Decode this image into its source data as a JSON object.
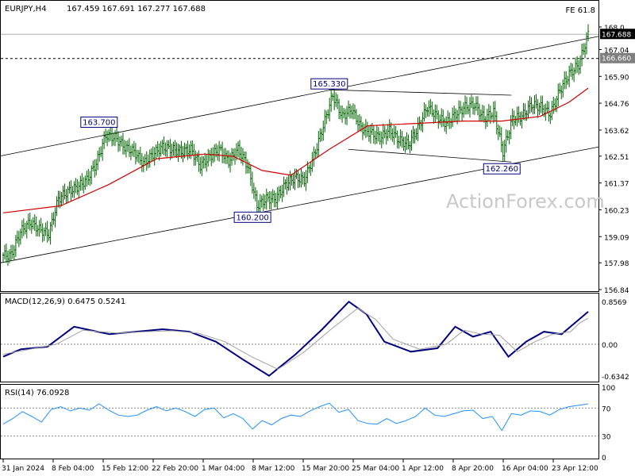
{
  "header": {
    "symbol": "EURJPY,H4",
    "ohlc": "167.459 167.691 167.277 167.688",
    "fe_label": "FE 61.8"
  },
  "watermark": "ActionForex.com",
  "colors": {
    "candles": "#006400",
    "ma": "#d00000",
    "macd": "#000080",
    "signal": "#a0a0a0",
    "channel": "#000000",
    "rsi": "#1e90ff"
  },
  "chart_data": [
    {
      "type": "candlestick",
      "name": "price",
      "y_ticks": [
        168.0,
        167.04,
        165.9,
        164.76,
        163.62,
        162.51,
        161.37,
        160.23,
        159.09,
        157.98,
        156.84
      ],
      "y_tick_labels": [
        "168.0",
        "167.04",
        "165.90",
        "164.76",
        "163.62",
        "162.51",
        "161.37",
        "160.23",
        "159.09",
        "157.98",
        "156.84"
      ],
      "ylim": [
        156.84,
        168.0
      ],
      "current_price": 167.688,
      "current_price_label": "167.688",
      "level_line": 166.66,
      "level_label": "166.660",
      "annotations": [
        {
          "label": "163.700",
          "date": "14 Feb",
          "value": 163.7
        },
        {
          "label": "165.330",
          "date": "19 Mar",
          "value": 165.33
        },
        {
          "label": "160.200",
          "date": "7 Mar",
          "value": 160.2
        },
        {
          "label": "162.260",
          "date": "12 Apr",
          "value": 162.26
        }
      ],
      "close_path": [
        [
          "31 Jan",
          158.3
        ],
        [
          "1 Feb",
          159.3
        ],
        [
          "2 Feb",
          159.7
        ],
        [
          "5 Feb",
          159.4
        ],
        [
          "6 Feb",
          159.2
        ],
        [
          "7 Feb",
          160.7
        ],
        [
          "8 Feb",
          161.0
        ],
        [
          "9 Feb",
          161.2
        ],
        [
          "12 Feb",
          161.5
        ],
        [
          "13 Feb",
          162.2
        ],
        [
          "14 Feb",
          163.4
        ],
        [
          "15 Feb",
          163.3
        ],
        [
          "16 Feb",
          162.9
        ],
        [
          "19 Feb",
          162.7
        ],
        [
          "20 Feb",
          162.2
        ],
        [
          "21 Feb",
          162.6
        ],
        [
          "22 Feb",
          162.9
        ],
        [
          "23 Feb",
          162.8
        ],
        [
          "26 Feb",
          162.7
        ],
        [
          "27 Feb",
          162.8
        ],
        [
          "28 Feb",
          162.1
        ],
        [
          "29 Feb",
          162.5
        ],
        [
          "1 Mar",
          162.8
        ],
        [
          "4 Mar",
          162.3
        ],
        [
          "5 Mar",
          162.8
        ],
        [
          "6 Mar",
          162.1
        ],
        [
          "7 Mar",
          160.4
        ],
        [
          "8 Mar",
          160.7
        ],
        [
          "11 Mar",
          160.7
        ],
        [
          "12 Mar",
          161.3
        ],
        [
          "13 Mar",
          161.6
        ],
        [
          "14 Mar",
          161.5
        ],
        [
          "15 Mar",
          162.5
        ],
        [
          "18 Mar",
          163.8
        ],
        [
          "19 Mar",
          165.1
        ],
        [
          "20 Mar",
          164.2
        ],
        [
          "21 Mar",
          164.5
        ],
        [
          "22 Mar",
          163.7
        ],
        [
          "25 Mar",
          163.5
        ],
        [
          "26 Mar",
          163.3
        ],
        [
          "27 Mar",
          163.6
        ],
        [
          "28 Mar",
          163.2
        ],
        [
          "29 Mar",
          163.0
        ],
        [
          "1 Apr",
          163.7
        ],
        [
          "2 Apr",
          164.6
        ],
        [
          "3 Apr",
          164.2
        ],
        [
          "4 Apr",
          163.9
        ],
        [
          "5 Apr",
          164.3
        ],
        [
          "8 Apr",
          164.6
        ],
        [
          "9 Apr",
          164.7
        ],
        [
          "10 Apr",
          164.1
        ],
        [
          "11 Apr",
          164.4
        ],
        [
          "12 Apr",
          162.7
        ],
        [
          "15 Apr",
          164.1
        ],
        [
          "16 Apr",
          164.2
        ],
        [
          "17 Apr",
          164.7
        ],
        [
          "18 Apr",
          164.6
        ],
        [
          "19 Apr",
          164.3
        ],
        [
          "22 Apr",
          165.3
        ],
        [
          "23 Apr",
          166.0
        ],
        [
          "24 Apr",
          166.4
        ],
        [
          "25 Apr",
          167.688
        ]
      ],
      "ma_path": [
        [
          "31 Jan",
          160.1
        ],
        [
          "8 Feb",
          160.4
        ],
        [
          "15 Feb",
          161.3
        ],
        [
          "22 Feb",
          162.4
        ],
        [
          "29 Feb",
          162.6
        ],
        [
          "5 Mar",
          162.5
        ],
        [
          "8 Mar",
          161.9
        ],
        [
          "13 Mar",
          161.7
        ],
        [
          "19 Mar",
          162.8
        ],
        [
          "25 Mar",
          163.8
        ],
        [
          "1 Apr",
          163.9
        ],
        [
          "8 Apr",
          164.0
        ],
        [
          "12 Apr",
          164.0
        ],
        [
          "18 Apr",
          164.2
        ],
        [
          "23 Apr",
          164.8
        ],
        [
          "25 Apr",
          165.4
        ]
      ],
      "channel_lines": [
        {
          "from": [
            "31 Jan",
            162.52
          ],
          "to": [
            "25 Apr",
            167.6
          ]
        },
        {
          "from": [
            "31 Jan",
            157.98
          ],
          "to": [
            "25 Apr",
            162.9
          ]
        }
      ],
      "triangle_lines": [
        {
          "from": [
            "19 Mar",
            165.33
          ],
          "to": [
            "15 Apr",
            165.1
          ]
        },
        {
          "from": [
            "21 Mar",
            162.8
          ],
          "to": [
            "15 Apr",
            162.26
          ]
        }
      ]
    },
    {
      "type": "line",
      "name": "macd_panel",
      "label": "MACD(12,26,9) 0.6475 0.5241",
      "y_ticks": [
        0.8569,
        0.0,
        -0.6342
      ],
      "y_tick_labels": [
        "0.8569",
        "0.00",
        "-0.6342"
      ],
      "ylim": [
        -0.7,
        0.95
      ],
      "series": [
        {
          "name": "MACD",
          "values": [
            [
              0,
              -0.25
            ],
            [
              2,
              -0.1
            ],
            [
              5,
              -0.05
            ],
            [
              8,
              0.35
            ],
            [
              12,
              0.2
            ],
            [
              15,
              0.25
            ],
            [
              18,
              0.3
            ],
            [
              21,
              0.25
            ],
            [
              24,
              0.05
            ],
            [
              27,
              -0.3
            ],
            [
              30,
              -0.63
            ],
            [
              33,
              -0.2
            ],
            [
              36,
              0.3
            ],
            [
              39,
              0.85
            ],
            [
              41,
              0.6
            ],
            [
              43,
              0.05
            ],
            [
              46,
              -0.15
            ],
            [
              49,
              -0.08
            ],
            [
              51,
              0.35
            ],
            [
              53,
              0.15
            ],
            [
              55,
              0.25
            ],
            [
              57,
              -0.25
            ],
            [
              59,
              0.05
            ],
            [
              61,
              0.25
            ],
            [
              63,
              0.2
            ],
            [
              65,
              0.5
            ],
            [
              66,
              0.65
            ]
          ]
        },
        {
          "name": "Signal",
          "values": [
            [
              0,
              -0.2
            ],
            [
              3,
              -0.1
            ],
            [
              6,
              0.0
            ],
            [
              9,
              0.28
            ],
            [
              13,
              0.22
            ],
            [
              16,
              0.25
            ],
            [
              19,
              0.27
            ],
            [
              22,
              0.22
            ],
            [
              25,
              0.05
            ],
            [
              28,
              -0.25
            ],
            [
              31,
              -0.5
            ],
            [
              34,
              -0.15
            ],
            [
              37,
              0.3
            ],
            [
              40,
              0.72
            ],
            [
              42,
              0.5
            ],
            [
              44,
              0.1
            ],
            [
              47,
              -0.1
            ],
            [
              50,
              0.0
            ],
            [
              52,
              0.28
            ],
            [
              54,
              0.2
            ],
            [
              56,
              0.18
            ],
            [
              58,
              -0.15
            ],
            [
              60,
              0.05
            ],
            [
              62,
              0.2
            ],
            [
              64,
              0.25
            ],
            [
              65,
              0.42
            ],
            [
              66,
              0.52
            ]
          ]
        }
      ]
    },
    {
      "type": "line",
      "name": "rsi_panel",
      "label": "RSI(14) 76.0928",
      "y_ticks": [
        100,
        70,
        30,
        0
      ],
      "y_tick_labels": [
        "100",
        "70",
        "30",
        "0"
      ],
      "ylim": [
        0,
        100
      ],
      "series": [
        {
          "name": "RSI",
          "values": [
            [
              0,
              47
            ],
            [
              1,
              55
            ],
            [
              2,
              65
            ],
            [
              3,
              58
            ],
            [
              4,
              50
            ],
            [
              5,
              68
            ],
            [
              6,
              72
            ],
            [
              7,
              66
            ],
            [
              8,
              70
            ],
            [
              9,
              67
            ],
            [
              10,
              76
            ],
            [
              11,
              67
            ],
            [
              12,
              60
            ],
            [
              13,
              58
            ],
            [
              14,
              60
            ],
            [
              15,
              67
            ],
            [
              16,
              72
            ],
            [
              17,
              66
            ],
            [
              18,
              70
            ],
            [
              19,
              65
            ],
            [
              20,
              58
            ],
            [
              21,
              68
            ],
            [
              22,
              70
            ],
            [
              23,
              56
            ],
            [
              24,
              62
            ],
            [
              25,
              55
            ],
            [
              26,
              40
            ],
            [
              27,
              52
            ],
            [
              28,
              46
            ],
            [
              29,
              55
            ],
            [
              30,
              60
            ],
            [
              31,
              58
            ],
            [
              32,
              66
            ],
            [
              33,
              72
            ],
            [
              34,
              77
            ],
            [
              35,
              64
            ],
            [
              36,
              68
            ],
            [
              37,
              52
            ],
            [
              38,
              48
            ],
            [
              39,
              47
            ],
            [
              40,
              55
            ],
            [
              41,
              48
            ],
            [
              42,
              52
            ],
            [
              43,
              58
            ],
            [
              44,
              70
            ],
            [
              45,
              60
            ],
            [
              46,
              58
            ],
            [
              47,
              62
            ],
            [
              48,
              66
            ],
            [
              49,
              67
            ],
            [
              50,
              55
            ],
            [
              51,
              58
            ],
            [
              52,
              38
            ],
            [
              53,
              62
            ],
            [
              54,
              60
            ],
            [
              55,
              66
            ],
            [
              56,
              65
            ],
            [
              57,
              60
            ],
            [
              58,
              68
            ],
            [
              59,
              72
            ],
            [
              60,
              74
            ],
            [
              61,
              76
            ]
          ]
        }
      ]
    }
  ],
  "x_axis": {
    "tick_labels": [
      "31 Jan 2024",
      "8 Feb 04:00",
      "15 Feb 12:00",
      "22 Feb 20:00",
      "1 Mar 04:00",
      "8 Mar 12:00",
      "15 Mar 20:00",
      "25 Mar 04:00",
      "1 Apr 12:00",
      "8 Apr 20:00",
      "16 Apr 04:00",
      "23 Apr 12:00"
    ]
  }
}
